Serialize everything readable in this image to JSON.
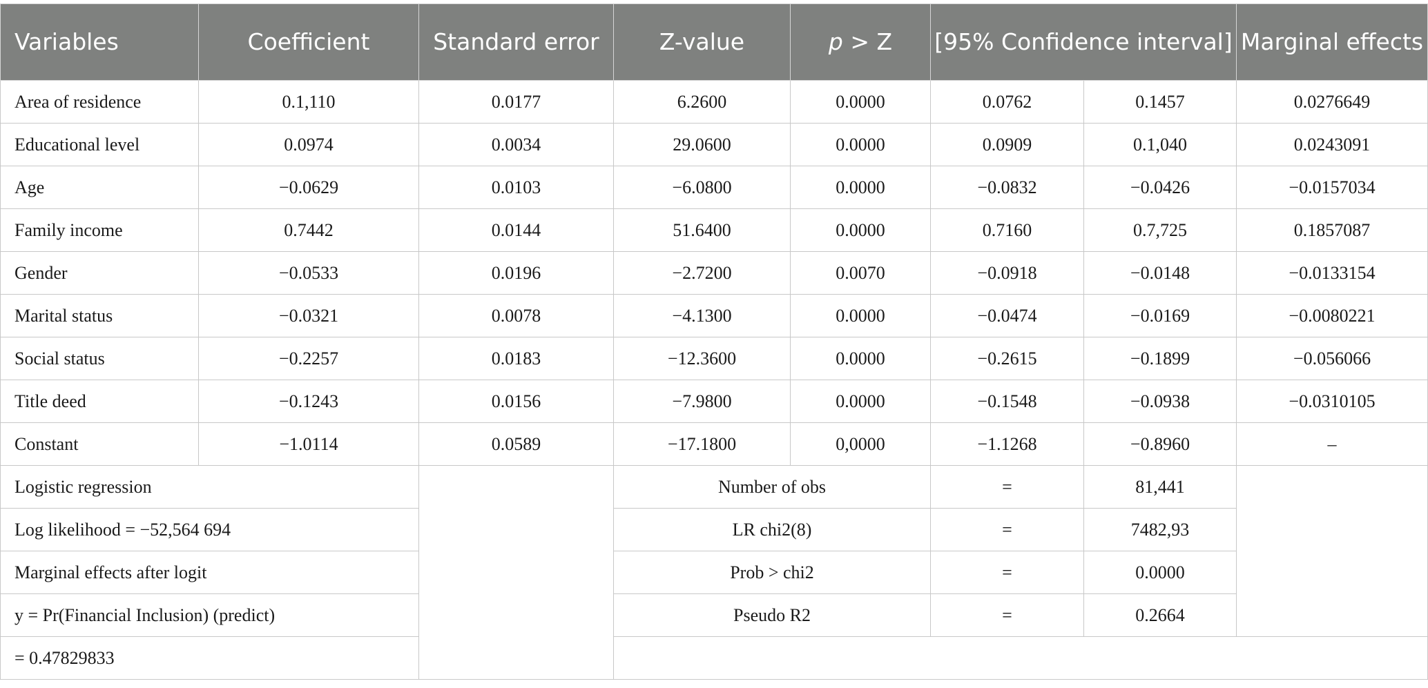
{
  "headers": {
    "variables": "Variables",
    "coefficient": "Coefficient",
    "std_error": "Standard error",
    "z_value": "Z-value",
    "p_italic": "p",
    "p_rest": " > Z",
    "ci": "[95% Confidence interval]",
    "marginal": "Marginal effects"
  },
  "rows": [
    [
      "Area of residence",
      "0.1,110",
      "0.0177",
      "6.2600",
      "0.0000",
      "0.0762",
      "0.1457",
      "0.0276649"
    ],
    [
      "Educational level",
      "0.0974",
      "0.0034",
      "29.0600",
      "0.0000",
      "0.0909",
      "0.1,040",
      "0.0243091"
    ],
    [
      "Age",
      "−0.0629",
      "0.0103",
      "−6.0800",
      "0.0000",
      "−0.0832",
      "−0.0426",
      "−0.0157034"
    ],
    [
      "Family income",
      "0.7442",
      "0.0144",
      "51.6400",
      "0.0000",
      "0.7160",
      "0.7,725",
      "0.1857087"
    ],
    [
      "Gender",
      "−0.0533",
      "0.0196",
      "−2.7200",
      "0.0070",
      "−0.0918",
      "−0.0148",
      "−0.0133154"
    ],
    [
      "Marital status",
      "−0.0321",
      "0.0078",
      "−4.1300",
      "0.0000",
      "−0.0474",
      "−0.0169",
      "−0.0080221"
    ],
    [
      "Social status",
      "−0.2257",
      "0.0183",
      "−12.3600",
      "0.0000",
      "−0.2615",
      "−0.1899",
      "−0.056066"
    ],
    [
      "Title deed",
      "−0.1243",
      "0.0156",
      "−7.9800",
      "0.0000",
      "−0.1548",
      "−0.0938",
      "−0.0310105"
    ],
    [
      "Constant",
      "−1.0114",
      "0.0589",
      "−17.1800",
      "0,0000",
      "−1.1268",
      "−0.8960",
      "–"
    ]
  ],
  "summary_left": [
    "Logistic regression",
    "Log likelihood = −52,564 694",
    "Marginal effects after logit",
    "y = Pr(Financial Inclusion) (predict)",
    "= 0.47829833"
  ],
  "summary_stats": [
    {
      "label": "Number of obs",
      "eq": "=",
      "value": "81,441"
    },
    {
      "label": "LR chi2(8)",
      "eq": "=",
      "value": "7482,93"
    },
    {
      "label": "Prob > chi2",
      "eq": "=",
      "value": "0.0000"
    },
    {
      "label": "Pseudo R2",
      "eq": "=",
      "value": "0.2664"
    }
  ]
}
